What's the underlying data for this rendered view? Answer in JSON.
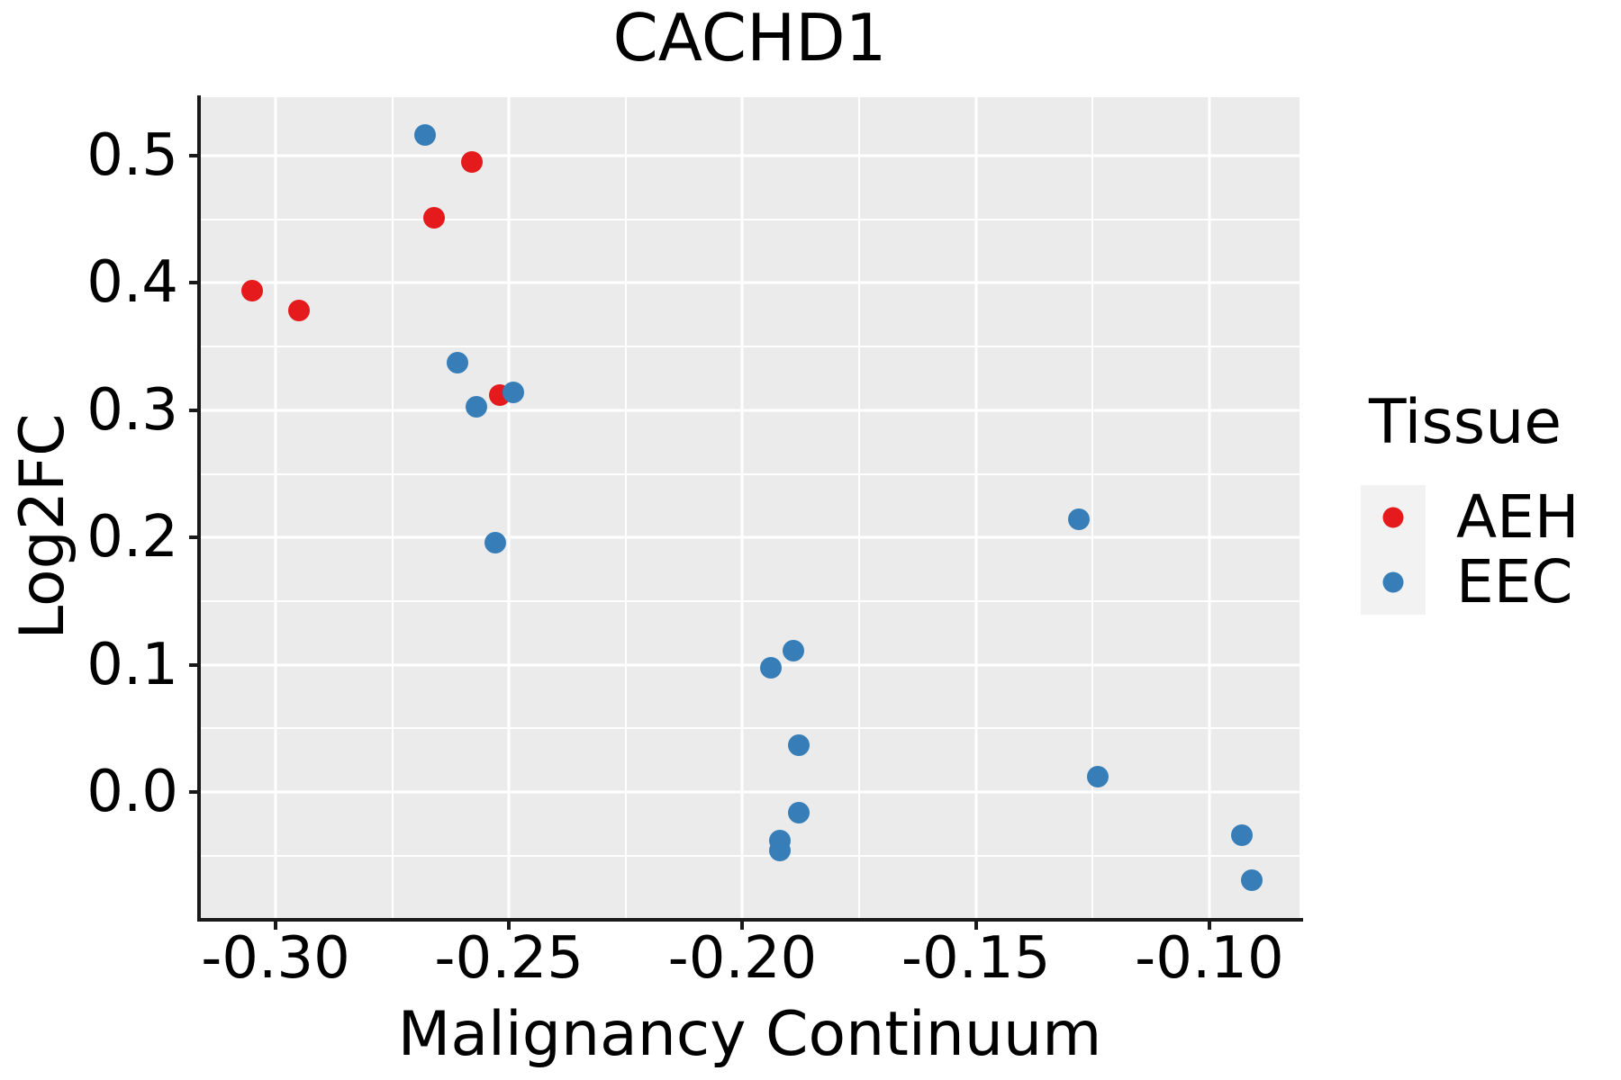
{
  "title": "CACHD1",
  "colors": {
    "panel_background": "#ebebeb",
    "gridline": "#ffffff",
    "axis": "#1a1a1a",
    "text": "#000000",
    "legend_key_background": "#f2f2f2",
    "aeh": "#e41a1c",
    "eec": "#377eb8"
  },
  "axes": {
    "x": {
      "label": "Malignancy Continuum",
      "tick_values": [
        -0.3,
        -0.25,
        -0.2,
        -0.15,
        -0.1
      ],
      "tick_labels": [
        "-0.30",
        "-0.25",
        "-0.20",
        "-0.15",
        "-0.10"
      ],
      "minor_values": [
        -0.275,
        -0.225,
        -0.175,
        -0.125
      ],
      "range": [
        -0.3162,
        -0.0807
      ]
    },
    "y": {
      "label": "Log2FC",
      "tick_values": [
        0.0,
        0.1,
        0.2,
        0.3,
        0.4,
        0.5
      ],
      "tick_labels": [
        "0.0",
        "0.1",
        "0.2",
        "0.3",
        "0.4",
        "0.5"
      ],
      "minor_values": [
        -0.05,
        0.05,
        0.15,
        0.25,
        0.35,
        0.45
      ],
      "range": [
        -0.1003,
        0.5459
      ]
    }
  },
  "legend": {
    "title": "Tissue",
    "entries": [
      {
        "label": "AEH",
        "color": "#e41a1c"
      },
      {
        "label": "EEC",
        "color": "#377eb8"
      }
    ]
  },
  "chart_data": {
    "type": "scatter",
    "title": "CACHD1",
    "xlabel": "Malignancy Continuum",
    "ylabel": "Log2FC",
    "xlim": [
      -0.3162,
      -0.0807
    ],
    "ylim": [
      -0.1003,
      0.5459
    ],
    "grid": "on",
    "legend_title": "Tissue",
    "legend_position": "right",
    "series": [
      {
        "name": "AEH",
        "color": "#e41a1c",
        "points": [
          [
            -0.305,
            0.394
          ],
          [
            -0.295,
            0.378
          ],
          [
            -0.266,
            0.451
          ],
          [
            -0.258,
            0.495
          ],
          [
            -0.252,
            0.312
          ]
        ]
      },
      {
        "name": "EEC",
        "color": "#377eb8",
        "points": [
          [
            -0.268,
            0.516
          ],
          [
            -0.261,
            0.337
          ],
          [
            -0.257,
            0.303
          ],
          [
            -0.253,
            0.196
          ],
          [
            -0.249,
            0.314
          ],
          [
            -0.194,
            0.098
          ],
          [
            -0.189,
            0.111
          ],
          [
            -0.192,
            -0.038
          ],
          [
            -0.192,
            -0.046
          ],
          [
            -0.188,
            0.037
          ],
          [
            -0.188,
            -0.016
          ],
          [
            -0.128,
            0.214
          ],
          [
            -0.124,
            0.012
          ],
          [
            -0.093,
            -0.034
          ],
          [
            -0.091,
            -0.069
          ]
        ]
      }
    ]
  }
}
